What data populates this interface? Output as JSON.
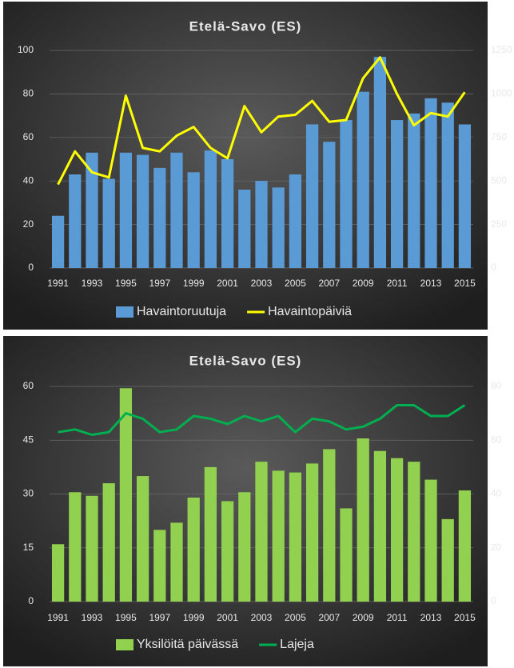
{
  "chart_data": [
    {
      "type": "bar-line",
      "title": "Etelä-Savo (ES)",
      "categories": [
        "1991",
        null,
        "1993",
        null,
        "1995",
        null,
        "1997",
        null,
        "1999",
        null,
        "2001",
        null,
        "2003",
        null,
        "2005",
        null,
        "2007",
        null,
        "2009",
        null,
        "2011",
        null,
        "2013",
        null,
        "2015"
      ],
      "series": [
        {
          "name": "Havaintoruutuja",
          "type": "bar",
          "color": "#5b9bd5",
          "axis": "y",
          "values": [
            24,
            43,
            53,
            41,
            53,
            52,
            46,
            53,
            44,
            54,
            50,
            36,
            40,
            37,
            43,
            66,
            58,
            68,
            81,
            97,
            68,
            71,
            78,
            76,
            66
          ]
        },
        {
          "name": "Havaintopäiviä",
          "type": "line",
          "color": "#ffff00",
          "axis": "y2",
          "values": [
            480,
            670,
            550,
            520,
            990,
            690,
            670,
            760,
            810,
            690,
            630,
            930,
            780,
            870,
            880,
            960,
            840,
            850,
            1090,
            1210,
            1000,
            820,
            890,
            870,
            1010
          ]
        }
      ],
      "ylim": [
        0,
        100
      ],
      "yticks": [
        0,
        20,
        40,
        60,
        80,
        100
      ],
      "y2lim": [
        0,
        1250
      ],
      "y2ticks": [
        0,
        250,
        500,
        750,
        1000,
        1250
      ]
    },
    {
      "type": "bar-line",
      "title": "Etelä-Savo (ES)",
      "categories": [
        "1991",
        null,
        "1993",
        null,
        "1995",
        null,
        "1997",
        null,
        "1999",
        null,
        "2001",
        null,
        "2003",
        null,
        "2005",
        null,
        "2007",
        null,
        "2009",
        null,
        "2011",
        null,
        "2013",
        null,
        "2015"
      ],
      "series": [
        {
          "name": "Yksilöitä päivässä",
          "type": "bar",
          "color": "#92d050",
          "axis": "y",
          "values": [
            16,
            30.5,
            29.5,
            33,
            59.5,
            35,
            20,
            22,
            29,
            37.5,
            28,
            30.5,
            39,
            36.5,
            36,
            38.5,
            42.5,
            26,
            45.5,
            42,
            40,
            39,
            34,
            23,
            31
          ]
        },
        {
          "name": "Lajeja",
          "type": "line",
          "color": "#00b050",
          "axis": "y2",
          "values": [
            63,
            64,
            62,
            63,
            70,
            68,
            63,
            64,
            69,
            68,
            66,
            69,
            67,
            69,
            63,
            68,
            67,
            64,
            65,
            68,
            73,
            73,
            69,
            69,
            73
          ]
        }
      ],
      "ylim": [
        0,
        60
      ],
      "yticks": [
        0,
        15,
        30,
        45,
        60
      ],
      "y2lim": [
        0,
        80
      ],
      "y2ticks": [
        0,
        20,
        40,
        60,
        80
      ]
    }
  ]
}
